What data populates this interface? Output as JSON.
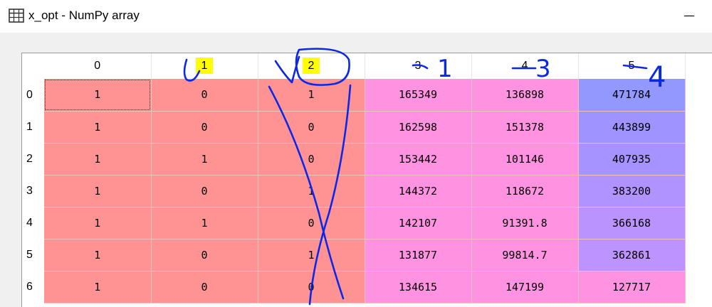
{
  "window": {
    "title": "x_opt - NumPy array",
    "icon": "table-icon",
    "minimize_glyph": "—"
  },
  "table": {
    "columns": [
      "0",
      "1",
      "2",
      "3",
      "4",
      "5"
    ],
    "highlighted_columns": [
      1,
      2
    ],
    "rows": [
      "0",
      "1",
      "2",
      "3",
      "4",
      "5",
      "6"
    ],
    "cells": [
      [
        "1",
        "0",
        "1",
        "165349",
        "136898",
        "471784"
      ],
      [
        "1",
        "0",
        "0",
        "162598",
        "151378",
        "443899"
      ],
      [
        "1",
        "1",
        "0",
        "153442",
        "101146",
        "407935"
      ],
      [
        "1",
        "0",
        "1",
        "144372",
        "118672",
        "383200"
      ],
      [
        "1",
        "1",
        "0",
        "142107",
        "91391.8",
        "366168"
      ],
      [
        "1",
        "0",
        "1",
        "131877",
        "99814.7",
        "362861"
      ],
      [
        "1",
        "0",
        "0",
        "134615",
        "147199",
        "127717"
      ]
    ],
    "cell_colors": [
      [
        "#ff9393",
        "#ff9393",
        "#ff9393",
        "#ff93e2",
        "#ff93e2",
        "#9398ff"
      ],
      [
        "#ff9393",
        "#ff9393",
        "#ff9393",
        "#ff93e2",
        "#ff93e2",
        "#9f93ff"
      ],
      [
        "#ff9393",
        "#ff9393",
        "#ff9393",
        "#ff93e2",
        "#ff93e2",
        "#a693ff"
      ],
      [
        "#ff9393",
        "#ff9393",
        "#ff9393",
        "#ff93e2",
        "#ff93e2",
        "#b093ff"
      ],
      [
        "#ff9393",
        "#ff9393",
        "#ff9393",
        "#ff93e2",
        "#ff93e2",
        "#bb93ff"
      ],
      [
        "#ff9393",
        "#ff9393",
        "#ff9393",
        "#ff93e2",
        "#ff93e2",
        "#bd93ff"
      ],
      [
        "#ff9393",
        "#ff9393",
        "#ff9393",
        "#ff93e2",
        "#ff93e2",
        "#ff93e2"
      ]
    ],
    "selected_cell": [
      0,
      0
    ]
  },
  "annotations": {
    "color": "#0a28e6",
    "highlight_color": "#ffff00",
    "handwritten_labels": [
      "1",
      "3",
      "4"
    ]
  }
}
